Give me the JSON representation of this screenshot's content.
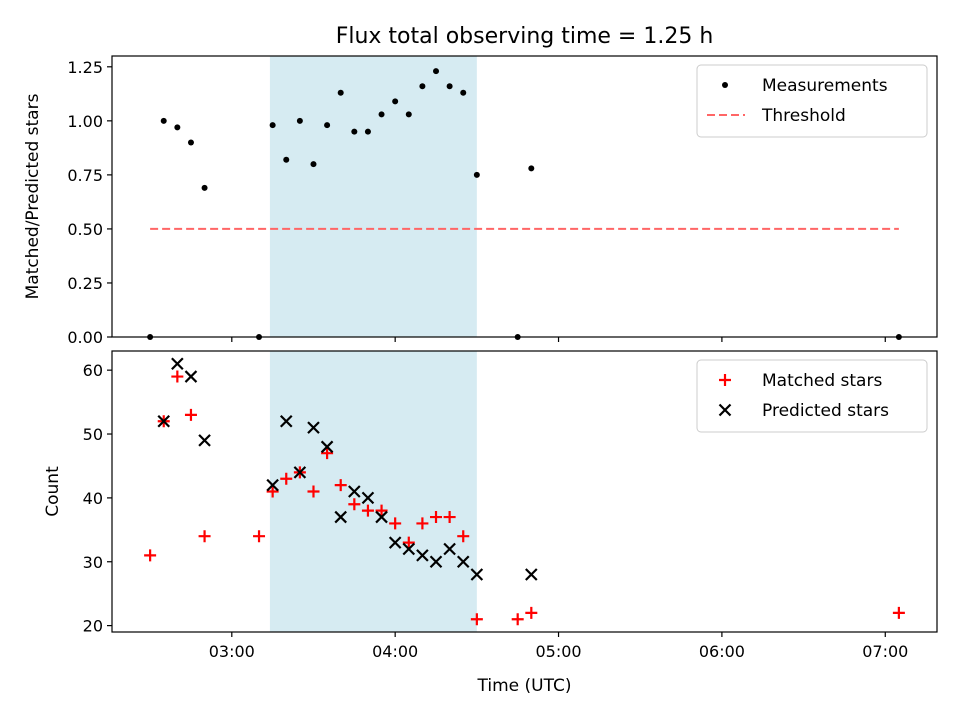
{
  "figure": {
    "title": "Flux total observing time = 1.25 h",
    "xlabel": "Time (UTC)"
  },
  "chart_data": [
    {
      "type": "scatter",
      "panel": "top",
      "ylabel": "Matched/Predicted stars",
      "xlim": [
        "02:16",
        "07:19"
      ],
      "ylim": [
        0,
        1.3
      ],
      "yticks": [
        "0.00",
        "0.25",
        "0.50",
        "0.75",
        "1.00",
        "1.25"
      ],
      "grid": false,
      "legend_position": "top-right",
      "shaded_region": {
        "from": "03:14",
        "to": "04:30",
        "color": "#add8e6"
      },
      "threshold": {
        "name": "Threshold",
        "y": 0.5,
        "from": "02:30",
        "to": "07:05",
        "color": "#ff6666",
        "style": "dashed"
      },
      "series": [
        {
          "name": "Measurements",
          "marker": "dot",
          "color": "#000000",
          "x": [
            "02:30",
            "02:35",
            "02:40",
            "02:45",
            "02:50",
            "03:10",
            "03:15",
            "03:20",
            "03:25",
            "03:30",
            "03:35",
            "03:40",
            "03:45",
            "03:50",
            "03:55",
            "04:00",
            "04:05",
            "04:10",
            "04:15",
            "04:20",
            "04:25",
            "04:30",
            "04:45",
            "04:50",
            "07:05"
          ],
          "y": [
            0.0,
            1.0,
            0.97,
            0.9,
            0.69,
            0.0,
            0.98,
            0.82,
            1.0,
            0.8,
            0.98,
            1.13,
            0.95,
            0.95,
            1.03,
            1.09,
            1.03,
            1.16,
            1.23,
            1.16,
            1.13,
            0.75,
            0.0,
            0.78,
            0.0
          ]
        }
      ]
    },
    {
      "type": "scatter",
      "panel": "bottom",
      "ylabel": "Count",
      "xlim": [
        "02:16",
        "07:19"
      ],
      "ylim": [
        19,
        63
      ],
      "yticks": [
        "20",
        "30",
        "40",
        "50",
        "60"
      ],
      "xticks": [
        "03:00",
        "04:00",
        "05:00",
        "06:00",
        "07:00"
      ],
      "grid": false,
      "legend_position": "top-right",
      "shaded_region": {
        "from": "03:14",
        "to": "04:30",
        "color": "#add8e6"
      },
      "series": [
        {
          "name": "Matched stars",
          "marker": "plus",
          "color": "#ff0000",
          "x": [
            "02:30",
            "02:35",
            "02:40",
            "02:45",
            "02:50",
            "03:10",
            "03:15",
            "03:20",
            "03:25",
            "03:30",
            "03:35",
            "03:40",
            "03:45",
            "03:50",
            "03:55",
            "04:00",
            "04:05",
            "04:10",
            "04:15",
            "04:20",
            "04:25",
            "04:30",
            "04:45",
            "04:50",
            "07:05"
          ],
          "y": [
            31,
            52,
            59,
            53,
            34,
            34,
            41,
            43,
            44,
            41,
            47,
            42,
            39,
            38,
            38,
            36,
            33,
            36,
            37,
            37,
            34,
            21,
            21,
            22,
            22
          ]
        },
        {
          "name": "Predicted stars",
          "marker": "x",
          "color": "#000000",
          "x": [
            "02:35",
            "02:40",
            "02:45",
            "02:50",
            "03:15",
            "03:20",
            "03:25",
            "03:30",
            "03:35",
            "03:40",
            "03:45",
            "03:50",
            "03:55",
            "04:00",
            "04:05",
            "04:10",
            "04:15",
            "04:20",
            "04:25",
            "04:30",
            "04:50"
          ],
          "y": [
            52,
            61,
            59,
            49,
            42,
            52,
            44,
            51,
            48,
            37,
            41,
            40,
            37,
            33,
            32,
            31,
            30,
            32,
            30,
            28,
            28
          ]
        }
      ]
    }
  ]
}
